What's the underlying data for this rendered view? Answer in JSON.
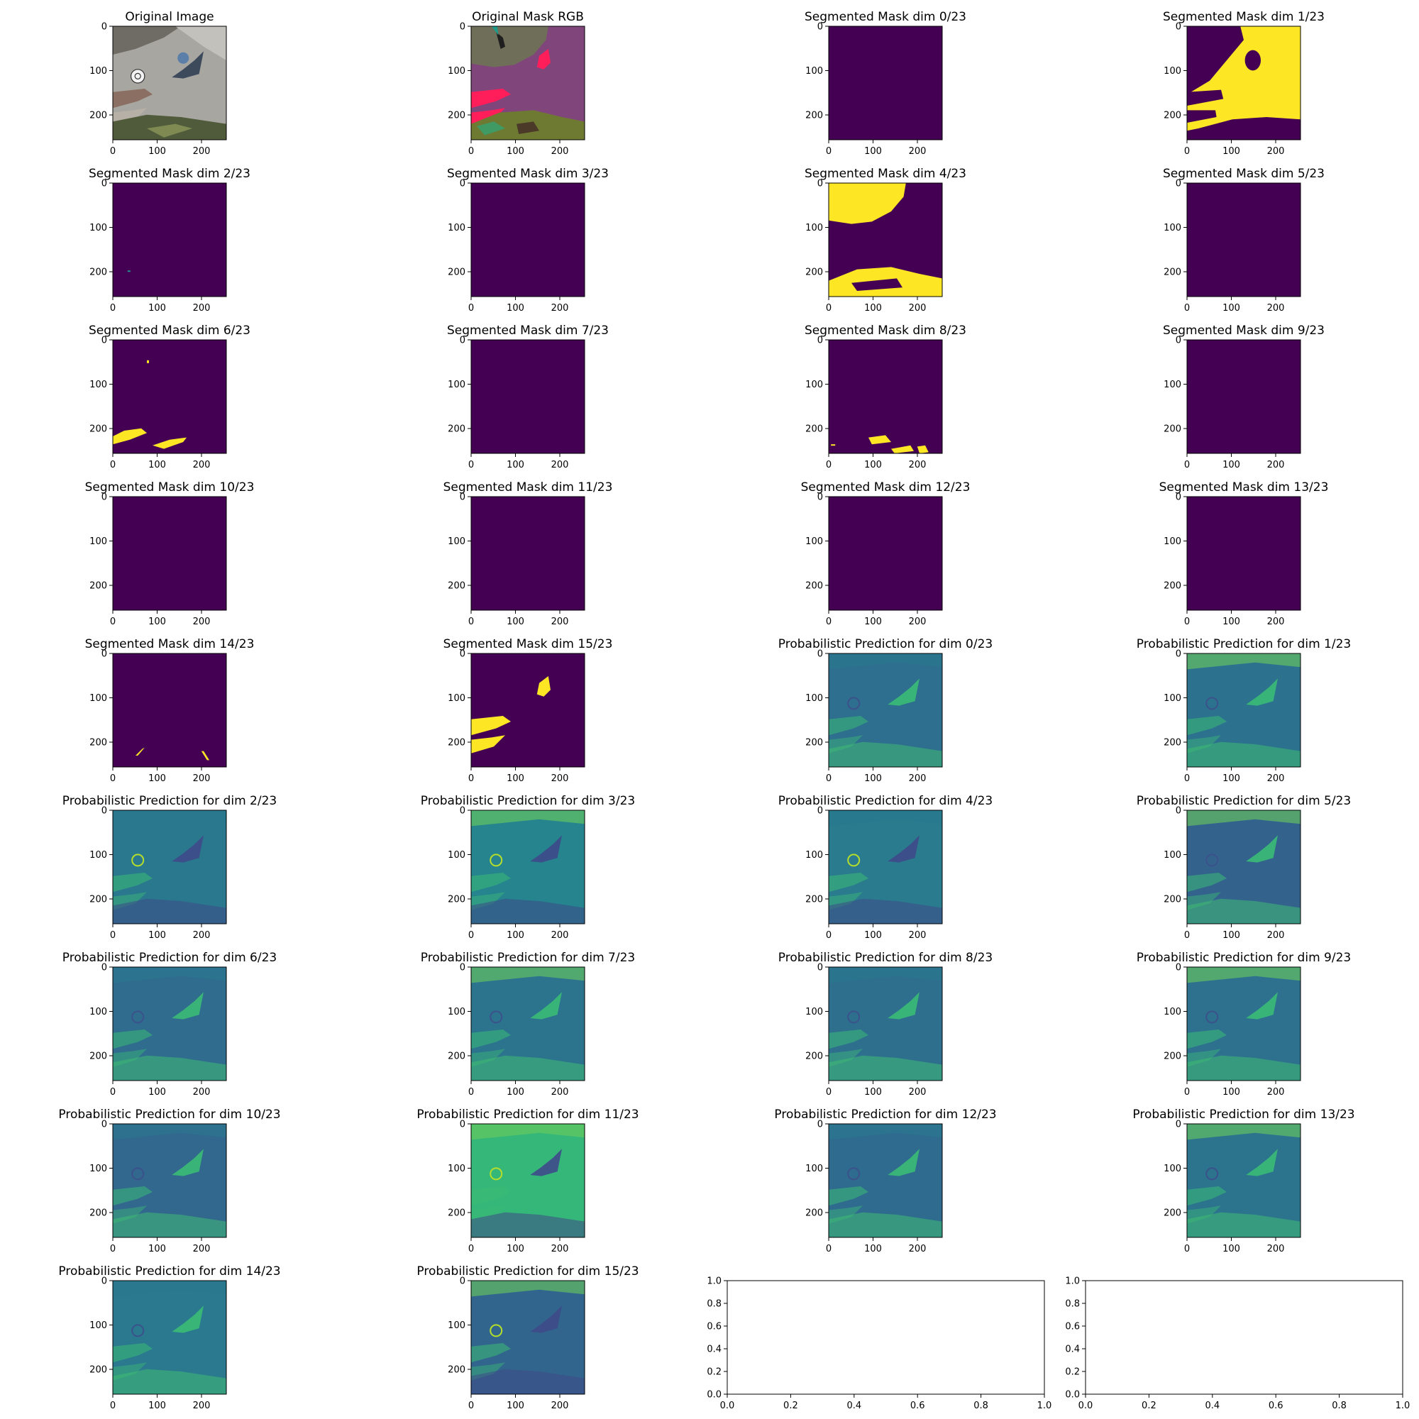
{
  "chart_data": {
    "type": "image-grid",
    "image_extent": [
      0,
      256
    ],
    "image_ticks": [
      0,
      100,
      200
    ],
    "empty_axis_ticks": [
      0.0,
      0.2,
      0.4,
      0.6,
      0.8,
      1.0
    ],
    "colormap": {
      "low": "#440154",
      "mid": "#21918c",
      "high": "#fde725"
    },
    "panels": [
      {
        "title": "Original Image",
        "kind": "photo"
      },
      {
        "title": "Original Mask RGB",
        "kind": "rgbmask"
      },
      {
        "title": "Segmented Mask dim 0/23",
        "kind": "mask",
        "dim": 0,
        "regions": []
      },
      {
        "title": "Segmented Mask dim 1/23",
        "kind": "mask",
        "dim": 1,
        "regions": [
          "upper-right surface and diagonal band"
        ]
      },
      {
        "title": "Segmented Mask dim 2/23",
        "kind": "mask",
        "dim": 2,
        "regions": [
          "tiny spot"
        ]
      },
      {
        "title": "Segmented Mask dim 3/23",
        "kind": "mask",
        "dim": 3,
        "regions": []
      },
      {
        "title": "Segmented Mask dim 4/23",
        "kind": "mask",
        "dim": 4,
        "regions": [
          "top-left area",
          "bottom strip"
        ]
      },
      {
        "title": "Segmented Mask dim 5/23",
        "kind": "mask",
        "dim": 5,
        "regions": []
      },
      {
        "title": "Segmented Mask dim 6/23",
        "kind": "mask",
        "dim": 6,
        "regions": [
          "bottom-left blobs"
        ]
      },
      {
        "title": "Segmented Mask dim 7/23",
        "kind": "mask",
        "dim": 7,
        "regions": []
      },
      {
        "title": "Segmented Mask dim 8/23",
        "kind": "mask",
        "dim": 8,
        "regions": [
          "bottom blobs"
        ]
      },
      {
        "title": "Segmented Mask dim 9/23",
        "kind": "mask",
        "dim": 9,
        "regions": []
      },
      {
        "title": "Segmented Mask dim 10/23",
        "kind": "mask",
        "dim": 10,
        "regions": []
      },
      {
        "title": "Segmented Mask dim 11/23",
        "kind": "mask",
        "dim": 11,
        "regions": []
      },
      {
        "title": "Segmented Mask dim 12/23",
        "kind": "mask",
        "dim": 12,
        "regions": []
      },
      {
        "title": "Segmented Mask dim 13/23",
        "kind": "mask",
        "dim": 13,
        "regions": []
      },
      {
        "title": "Segmented Mask dim 14/23",
        "kind": "mask",
        "dim": 14,
        "regions": [
          "two thin strokes"
        ]
      },
      {
        "title": "Segmented Mask dim 15/23",
        "kind": "mask",
        "dim": 15,
        "regions": [
          "person blobs"
        ]
      },
      {
        "title": "Probabilistic Prediction for dim 0/23",
        "kind": "prob",
        "dim": 0
      },
      {
        "title": "Probabilistic Prediction for dim 1/23",
        "kind": "prob",
        "dim": 1
      },
      {
        "title": "Probabilistic Prediction for dim 2/23",
        "kind": "prob",
        "dim": 2
      },
      {
        "title": "Probabilistic Prediction for dim 3/23",
        "kind": "prob",
        "dim": 3
      },
      {
        "title": "Probabilistic Prediction for dim 4/23",
        "kind": "prob",
        "dim": 4
      },
      {
        "title": "Probabilistic Prediction for dim 5/23",
        "kind": "prob",
        "dim": 5
      },
      {
        "title": "Probabilistic Prediction for dim 6/23",
        "kind": "prob",
        "dim": 6
      },
      {
        "title": "Probabilistic Prediction for dim 7/23",
        "kind": "prob",
        "dim": 7
      },
      {
        "title": "Probabilistic Prediction for dim 8/23",
        "kind": "prob",
        "dim": 8
      },
      {
        "title": "Probabilistic Prediction for dim 9/23",
        "kind": "prob",
        "dim": 9
      },
      {
        "title": "Probabilistic Prediction for dim 10/23",
        "kind": "prob",
        "dim": 10
      },
      {
        "title": "Probabilistic Prediction for dim 11/23",
        "kind": "prob",
        "dim": 11
      },
      {
        "title": "Probabilistic Prediction for dim 12/23",
        "kind": "prob",
        "dim": 12
      },
      {
        "title": "Probabilistic Prediction for dim 13/23",
        "kind": "prob",
        "dim": 13
      },
      {
        "title": "Probabilistic Prediction for dim 14/23",
        "kind": "prob",
        "dim": 14
      },
      {
        "title": "Probabilistic Prediction for dim 15/23",
        "kind": "prob",
        "dim": 15
      },
      {
        "title": "",
        "kind": "empty"
      },
      {
        "title": "",
        "kind": "empty"
      }
    ]
  }
}
